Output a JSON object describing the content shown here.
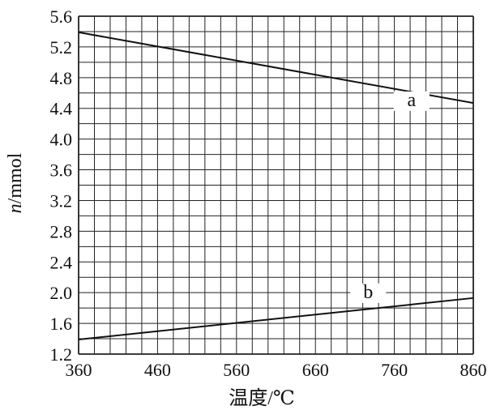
{
  "chart_data": {
    "type": "line",
    "title": "",
    "xlabel": "温度/℃",
    "ylabel": "n/mmol",
    "ylabel_italic_part": "n",
    "ylabel_rest": "/mmol",
    "xlim": [
      360,
      860
    ],
    "ylim": [
      1.2,
      5.6
    ],
    "x_ticks": [
      360,
      460,
      560,
      660,
      760,
      860
    ],
    "x_tick_labels": [
      "360",
      "460",
      "560",
      "660",
      "760",
      "860"
    ],
    "y_ticks": [
      1.2,
      1.6,
      2.0,
      2.4,
      2.8,
      3.2,
      3.6,
      4.0,
      4.4,
      4.8,
      5.2,
      5.6
    ],
    "y_tick_labels": [
      "1.2",
      "1.6",
      "2.0",
      "2.4",
      "2.8",
      "3.2",
      "3.6",
      "4.0",
      "4.4",
      "4.8",
      "5.2",
      "5.6"
    ],
    "grid": {
      "x_step": 20,
      "y_step": 0.2
    },
    "series": [
      {
        "name": "a",
        "x": [
          360,
          860
        ],
        "y": [
          5.39,
          4.47
        ],
        "label_at": [
          790,
          4.43
        ]
      },
      {
        "name": "b",
        "x": [
          360,
          860
        ],
        "y": [
          1.39,
          1.93
        ],
        "label_at": [
          735,
          1.93
        ]
      }
    ]
  }
}
